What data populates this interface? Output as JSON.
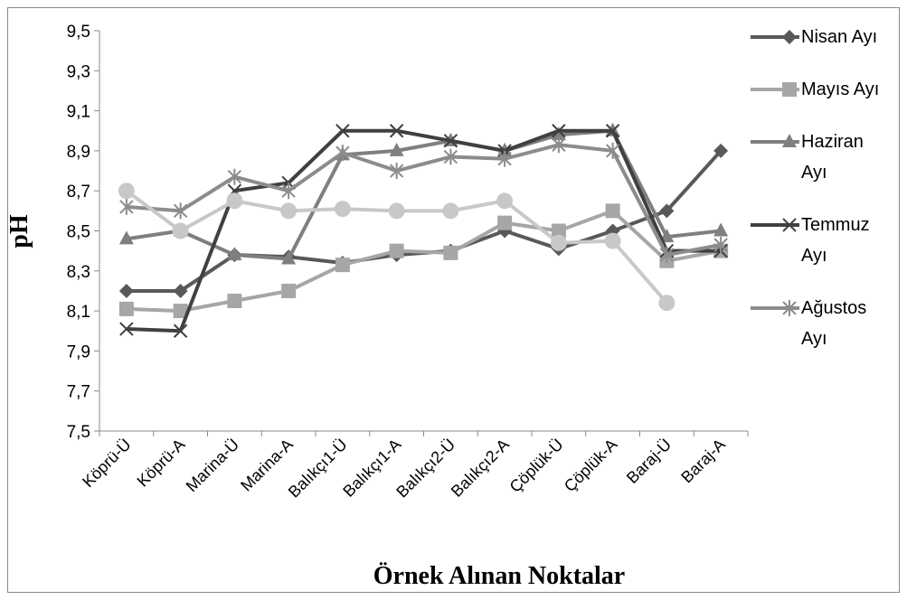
{
  "chart_data": {
    "type": "line",
    "x_label": "Örnek Alınan Noktalar",
    "y_label": "pH",
    "categories": [
      "Köprü-Ü",
      "Köprü-A",
      "Marina-Ü",
      "Marina-A",
      "Balıkçı1-Ü",
      "Balıkçı1-A",
      "Balıkçı2-Ü",
      "Balıkçı2-A",
      "Çöplük-Ü",
      "Çöplük-A",
      "Baraj-Ü",
      "Baraj-A"
    ],
    "ylim": [
      7.5,
      9.5
    ],
    "yticks": [
      {
        "value": 7.5,
        "label": "7,5"
      },
      {
        "value": 7.7,
        "label": "7,7"
      },
      {
        "value": 7.9,
        "label": "7,9"
      },
      {
        "value": 8.1,
        "label": "8,1"
      },
      {
        "value": 8.3,
        "label": "8,3"
      },
      {
        "value": 8.5,
        "label": "8,5"
      },
      {
        "value": 8.7,
        "label": "8,7"
      },
      {
        "value": 8.9,
        "label": "8,9"
      },
      {
        "value": 9.1,
        "label": "9,1"
      },
      {
        "value": 9.3,
        "label": "9,3"
      },
      {
        "value": 9.5,
        "label": "9,5"
      }
    ],
    "series": [
      {
        "name": "Nisan Ayı",
        "color": "#595959",
        "marker": "diamond",
        "values": [
          8.2,
          8.2,
          8.38,
          8.37,
          8.34,
          8.38,
          8.4,
          8.5,
          8.41,
          8.5,
          8.6,
          8.9
        ]
      },
      {
        "name": "Mayıs Ayı",
        "color": "#a6a6a6",
        "marker": "square",
        "values": [
          8.11,
          8.1,
          8.15,
          8.2,
          8.33,
          8.4,
          8.39,
          8.54,
          8.5,
          8.6,
          8.35,
          8.4
        ]
      },
      {
        "name": "Haziran Ayı",
        "color": "#7f7f7f",
        "marker": "triangle",
        "values": [
          8.46,
          8.5,
          8.38,
          8.36,
          8.88,
          8.9,
          8.95,
          8.9,
          8.98,
          9.0,
          8.47,
          8.5
        ]
      },
      {
        "name": "Temmuz Ayı",
        "color": "#404040",
        "marker": "x",
        "values": [
          8.01,
          8.0,
          8.7,
          8.74,
          9.0,
          9.0,
          8.95,
          8.9,
          9.0,
          9.0,
          8.4,
          8.4
        ]
      },
      {
        "name": "Ağustos Ayı",
        "color": "#8c8c8c",
        "marker": "star",
        "values": [
          8.62,
          8.6,
          8.77,
          8.7,
          8.89,
          8.8,
          8.87,
          8.86,
          8.93,
          8.9,
          8.38,
          8.43
        ]
      },
      {
        "color": "#c8c8c8",
        "marker": "circle",
        "values": [
          8.7,
          8.5,
          8.65,
          8.6,
          8.61,
          8.6,
          8.6,
          8.65,
          8.44,
          8.45,
          8.14,
          null
        ]
      }
    ]
  }
}
